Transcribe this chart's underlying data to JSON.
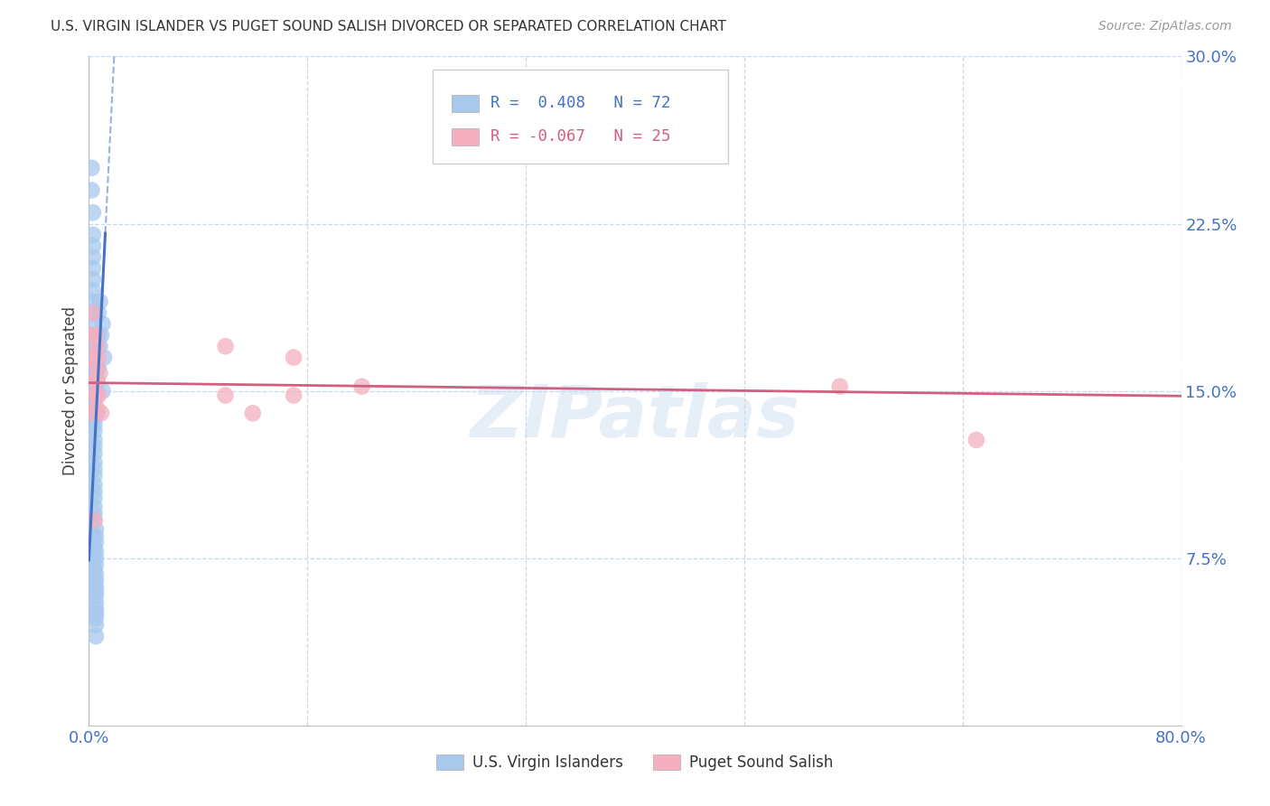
{
  "title": "U.S. VIRGIN ISLANDER VS PUGET SOUND SALISH DIVORCED OR SEPARATED CORRELATION CHART",
  "source": "Source: ZipAtlas.com",
  "ylabel": "Divorced or Separated",
  "xlim": [
    0.0,
    0.8
  ],
  "ylim": [
    0.0,
    0.3
  ],
  "yticks": [
    0.075,
    0.15,
    0.225,
    0.3
  ],
  "ytick_labels": [
    "7.5%",
    "15.0%",
    "22.5%",
    "30.0%"
  ],
  "xticks": [
    0.0,
    0.16,
    0.32,
    0.48,
    0.64,
    0.8
  ],
  "xtick_labels": [
    "0.0%",
    "",
    "",
    "",
    "",
    "80.0%"
  ],
  "blue_color": "#A8C8EE",
  "pink_color": "#F4B0C0",
  "blue_line_color": "#4472C4",
  "pink_line_color": "#D06080",
  "blue_r": 0.408,
  "pink_r": -0.067,
  "watermark": "ZIPatlas",
  "legend_label1": "U.S. Virgin Islanders",
  "legend_label2": "Puget Sound Salish",
  "blue_scatter_x": [
    0.002,
    0.002,
    0.003,
    0.003,
    0.003,
    0.003,
    0.003,
    0.003,
    0.003,
    0.003,
    0.003,
    0.003,
    0.003,
    0.003,
    0.003,
    0.003,
    0.004,
    0.004,
    0.004,
    0.004,
    0.004,
    0.004,
    0.004,
    0.004,
    0.004,
    0.004,
    0.004,
    0.004,
    0.004,
    0.004,
    0.004,
    0.004,
    0.004,
    0.004,
    0.004,
    0.004,
    0.005,
    0.005,
    0.005,
    0.005,
    0.005,
    0.005,
    0.005,
    0.005,
    0.005,
    0.005,
    0.005,
    0.005,
    0.005,
    0.005,
    0.006,
    0.006,
    0.006,
    0.006,
    0.006,
    0.007,
    0.007,
    0.007,
    0.008,
    0.008,
    0.009,
    0.01,
    0.01,
    0.011,
    0.003,
    0.003,
    0.004,
    0.004,
    0.004,
    0.005,
    0.005,
    0.005
  ],
  "blue_scatter_y": [
    0.25,
    0.24,
    0.23,
    0.22,
    0.215,
    0.21,
    0.205,
    0.2,
    0.195,
    0.19,
    0.185,
    0.18,
    0.175,
    0.17,
    0.165,
    0.16,
    0.155,
    0.152,
    0.148,
    0.145,
    0.142,
    0.138,
    0.135,
    0.132,
    0.128,
    0.125,
    0.122,
    0.118,
    0.115,
    0.112,
    0.108,
    0.105,
    0.102,
    0.098,
    0.095,
    0.092,
    0.088,
    0.085,
    0.082,
    0.078,
    0.075,
    0.072,
    0.068,
    0.065,
    0.062,
    0.058,
    0.055,
    0.052,
    0.048,
    0.045,
    0.17,
    0.16,
    0.155,
    0.15,
    0.14,
    0.185,
    0.175,
    0.16,
    0.19,
    0.17,
    0.175,
    0.18,
    0.15,
    0.165,
    0.085,
    0.075,
    0.08,
    0.07,
    0.065,
    0.06,
    0.05,
    0.04
  ],
  "pink_scatter_x": [
    0.003,
    0.003,
    0.004,
    0.004,
    0.004,
    0.004,
    0.004,
    0.005,
    0.005,
    0.005,
    0.006,
    0.006,
    0.006,
    0.007,
    0.007,
    0.008,
    0.009,
    0.1,
    0.1,
    0.15,
    0.15,
    0.2,
    0.55,
    0.65,
    0.12
  ],
  "pink_scatter_y": [
    0.185,
    0.175,
    0.165,
    0.155,
    0.148,
    0.14,
    0.092,
    0.175,
    0.162,
    0.148,
    0.17,
    0.155,
    0.142,
    0.165,
    0.148,
    0.158,
    0.14,
    0.17,
    0.148,
    0.165,
    0.148,
    0.152,
    0.152,
    0.128,
    0.14
  ]
}
